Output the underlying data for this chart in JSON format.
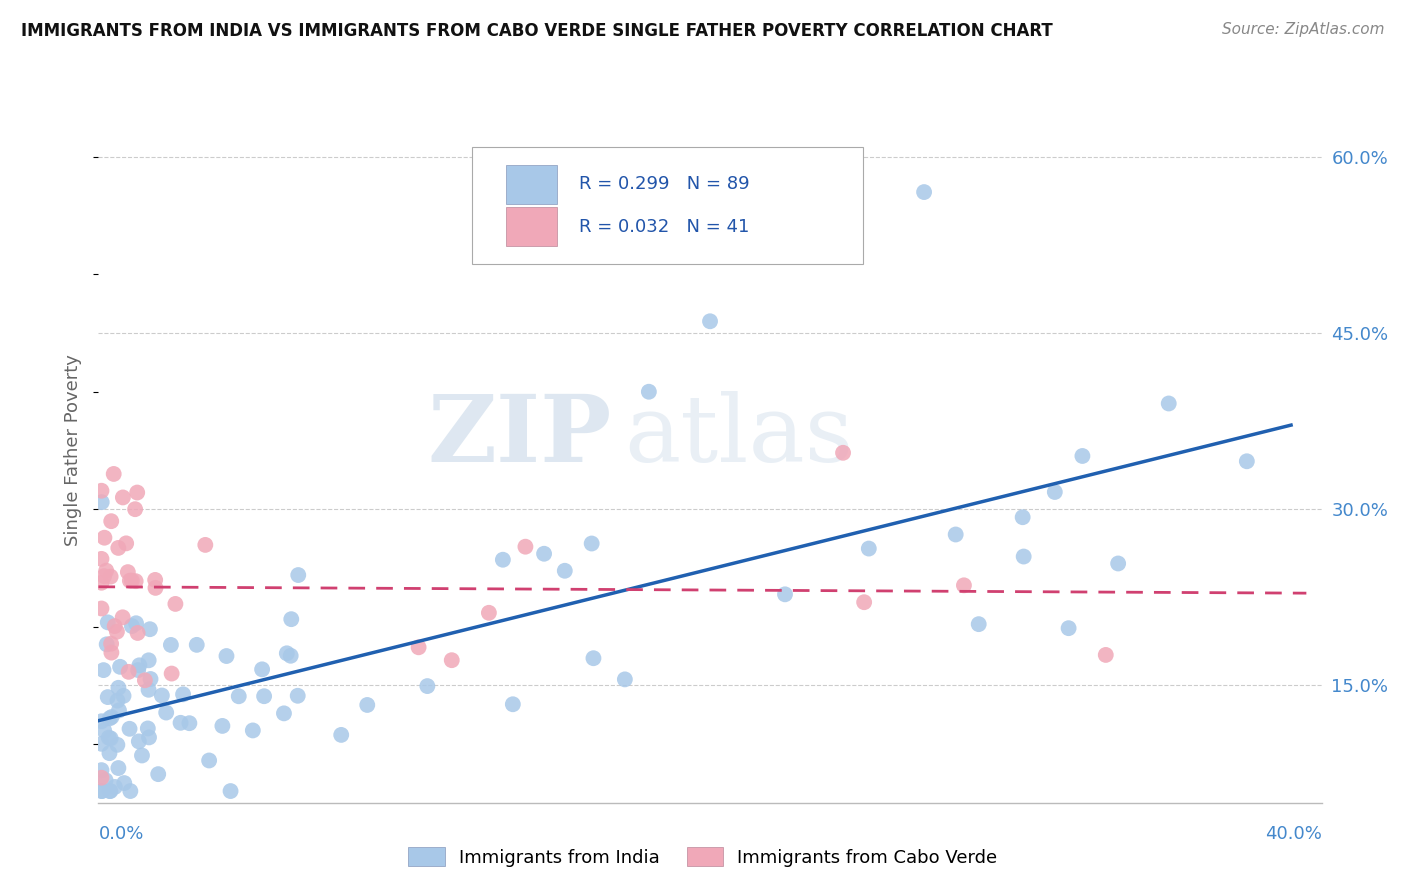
{
  "title": "IMMIGRANTS FROM INDIA VS IMMIGRANTS FROM CABO VERDE SINGLE FATHER POVERTY CORRELATION CHART",
  "source": "Source: ZipAtlas.com",
  "ylabel": "Single Father Poverty",
  "xlim": [
    0.0,
    0.4
  ],
  "ylim": [
    0.05,
    0.65
  ],
  "yticks_right": [
    0.15,
    0.3,
    0.45,
    0.6
  ],
  "ytick_right_labels": [
    "15.0%",
    "30.0%",
    "45.0%",
    "60.0%"
  ],
  "india_R": 0.299,
  "india_N": 89,
  "caboverde_R": 0.032,
  "caboverde_N": 41,
  "india_color": "#a8c8e8",
  "india_line_color": "#2060b0",
  "caboverde_color": "#f0a8b8",
  "caboverde_line_color": "#d04070",
  "background_color": "#ffffff",
  "grid_color": "#cccccc",
  "watermark_zip": "ZIP",
  "watermark_atlas": "atlas",
  "title_fontsize": 12,
  "source_fontsize": 11,
  "tick_fontsize": 13,
  "ylabel_fontsize": 13
}
